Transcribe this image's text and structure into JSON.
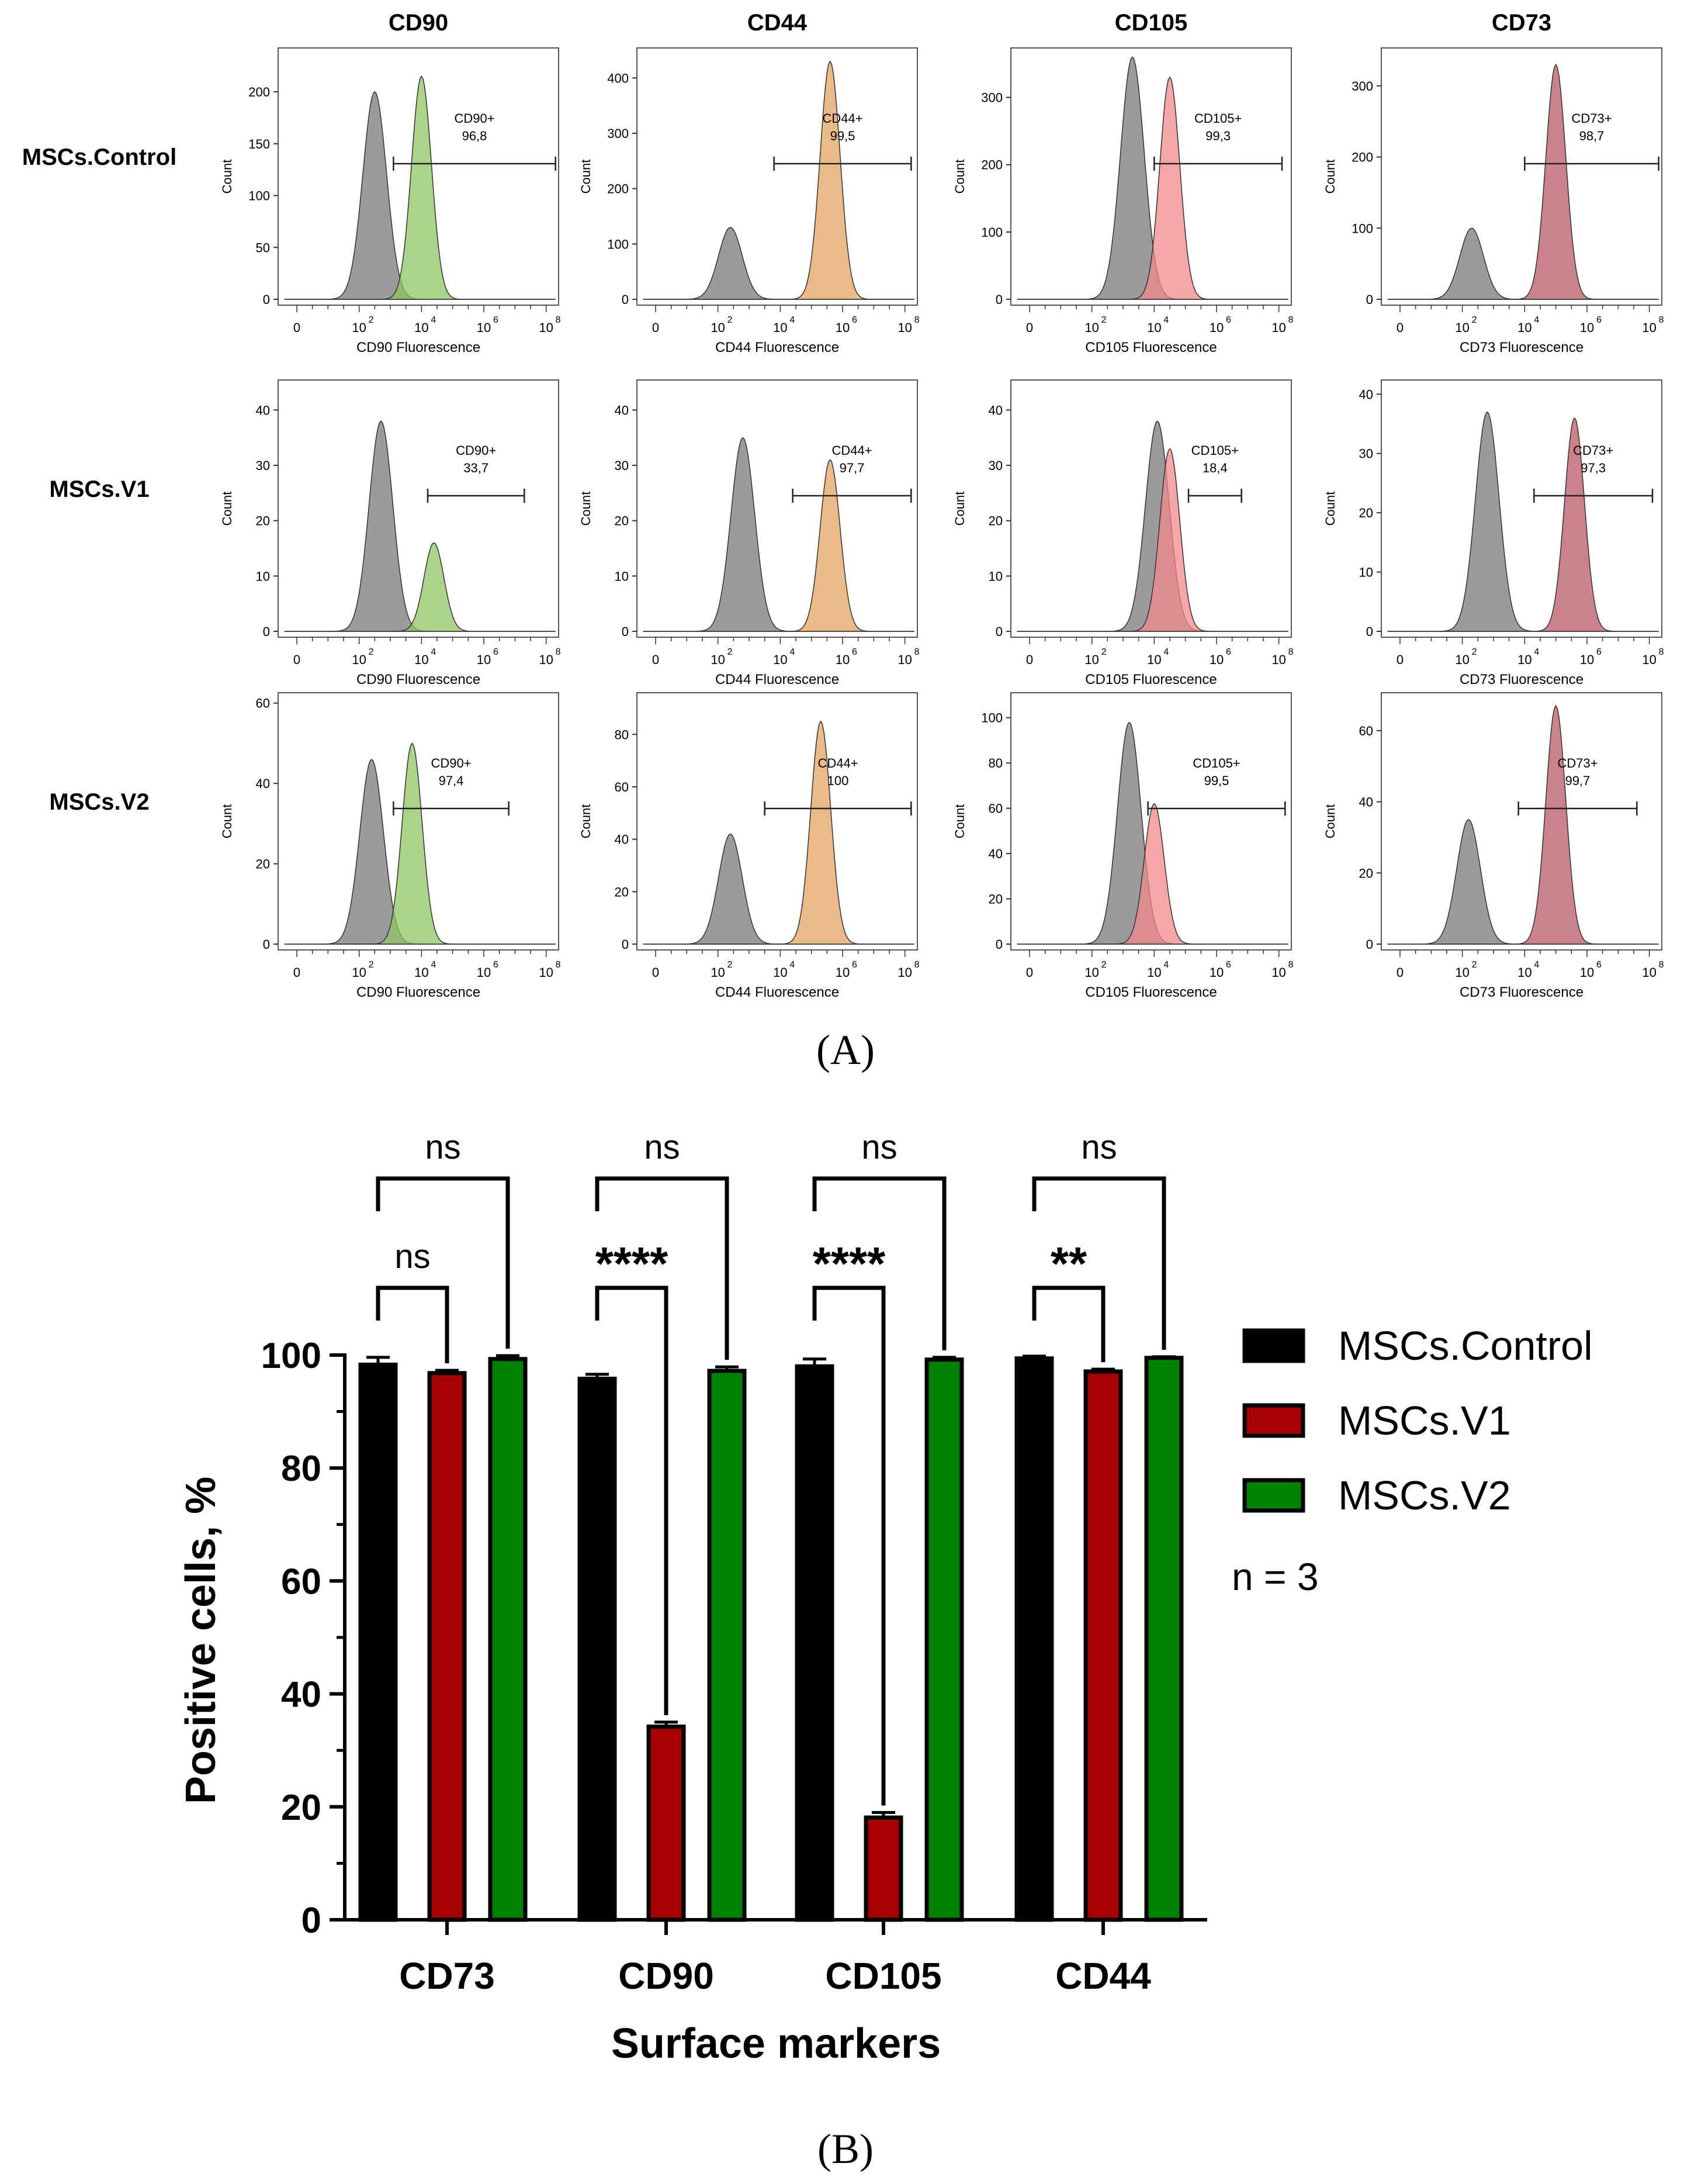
{
  "panel_a": {
    "label": "(A)",
    "columns": [
      "CD90",
      "CD44",
      "CD105",
      "CD73"
    ],
    "rows": [
      "MSCs.Control",
      "MSCs.V1",
      "MSCs.V2"
    ],
    "count_label": "Count",
    "x_tick_labels": [
      "0",
      "10",
      "10",
      "10",
      "10"
    ],
    "x_tick_exponents": [
      "",
      "2",
      "4",
      "6",
      "8"
    ],
    "colors": {
      "control": "#7a7a7a",
      "CD90": "#8fc462",
      "CD44": "#e3a462",
      "CD105": "#f28a8a",
      "CD73": "#b85a64"
    },
    "plots": [
      {
        "row": "MSCs.Control",
        "marker": "CD90",
        "xlabel": "CD90 Fluorescence",
        "gate_label": "CD90+",
        "gate_value": "96,8",
        "ymax": 240,
        "yticks": [
          "0",
          "50",
          "100",
          "150",
          "200"
        ],
        "control_peak": [
          2.5,
          200
        ],
        "marker_peak": [
          4.0,
          215
        ],
        "gate_range": [
          3.1,
          8.3
        ]
      },
      {
        "row": "MSCs.Control",
        "marker": "CD44",
        "xlabel": "CD44 Fluorescence",
        "gate_label": "CD44+",
        "gate_value": "99,5",
        "ymax": 450,
        "yticks": [
          "0",
          "100",
          "200",
          "300",
          "400"
        ],
        "control_peak": [
          2.4,
          130
        ],
        "marker_peak": [
          5.6,
          430
        ],
        "gate_range": [
          3.8,
          8.2
        ]
      },
      {
        "row": "MSCs.Control",
        "marker": "CD105",
        "xlabel": "CD105 Fluorescence",
        "gate_label": "CD105+",
        "gate_value": "99,3",
        "ymax": 370,
        "yticks": [
          "0",
          "100",
          "200",
          "300"
        ],
        "control_peak": [
          3.3,
          360
        ],
        "marker_peak": [
          4.5,
          330
        ],
        "gate_range": [
          4.0,
          8.1
        ]
      },
      {
        "row": "MSCs.Control",
        "marker": "CD73",
        "xlabel": "CD73 Fluorescence",
        "gate_label": "CD73+",
        "gate_value": "98,7",
        "ymax": 350,
        "yticks": [
          "0",
          "100",
          "200",
          "300"
        ],
        "control_peak": [
          2.3,
          100
        ],
        "marker_peak": [
          5.0,
          330
        ],
        "gate_range": [
          4.0,
          8.3
        ]
      },
      {
        "row": "MSCs.V1",
        "marker": "CD90",
        "xlabel": "CD90 Fluorescence",
        "gate_label": "CD90+",
        "gate_value": "33,7",
        "ymax": 45,
        "yticks": [
          "0",
          "10",
          "20",
          "30",
          "40"
        ],
        "control_peak": [
          2.7,
          38
        ],
        "marker_peak": [
          4.4,
          16
        ],
        "gate_range": [
          4.2,
          7.3
        ]
      },
      {
        "row": "MSCs.V1",
        "marker": "CD44",
        "xlabel": "CD44 Fluorescence",
        "gate_label": "CD44+",
        "gate_value": "97,7",
        "ymax": 45,
        "yticks": [
          "0",
          "10",
          "20",
          "30",
          "40"
        ],
        "control_peak": [
          2.8,
          35
        ],
        "marker_peak": [
          5.6,
          31
        ],
        "gate_range": [
          4.4,
          8.2
        ]
      },
      {
        "row": "MSCs.V1",
        "marker": "CD105",
        "xlabel": "CD105 Fluorescence",
        "gate_label": "CD105+",
        "gate_value": "18,4",
        "ymax": 45,
        "yticks": [
          "0",
          "10",
          "20",
          "30",
          "40"
        ],
        "control_peak": [
          4.1,
          38
        ],
        "marker_peak": [
          4.5,
          33
        ],
        "gate_range": [
          5.1,
          6.8
        ]
      },
      {
        "row": "MSCs.V1",
        "marker": "CD73",
        "xlabel": "CD73 Fluorescence",
        "gate_label": "CD73+",
        "gate_value": "97,3",
        "ymax": 42,
        "yticks": [
          "0",
          "10",
          "20",
          "30",
          "40"
        ],
        "control_peak": [
          2.8,
          37
        ],
        "marker_peak": [
          5.6,
          36
        ],
        "gate_range": [
          4.3,
          8.1
        ]
      },
      {
        "row": "MSCs.V2",
        "marker": "CD90",
        "xlabel": "CD90 Fluorescence",
        "gate_label": "CD90+",
        "gate_value": "97,4",
        "ymax": 62,
        "yticks": [
          "0",
          "20",
          "40",
          "60"
        ],
        "control_peak": [
          2.4,
          46
        ],
        "marker_peak": [
          3.7,
          50
        ],
        "gate_range": [
          3.1,
          6.8
        ]
      },
      {
        "row": "MSCs.V2",
        "marker": "CD44",
        "xlabel": "CD44 Fluorescence",
        "gate_label": "CD44+",
        "gate_value": "100",
        "ymax": 95,
        "yticks": [
          "0",
          "20",
          "40",
          "60",
          "80"
        ],
        "control_peak": [
          2.4,
          42
        ],
        "marker_peak": [
          5.3,
          85
        ],
        "gate_range": [
          3.5,
          8.2
        ]
      },
      {
        "row": "MSCs.V2",
        "marker": "CD105",
        "xlabel": "CD105 Fluorescence",
        "gate_label": "CD105+",
        "gate_value": "99,5",
        "ymax": 110,
        "yticks": [
          "0",
          "20",
          "40",
          "60",
          "80",
          "100"
        ],
        "control_peak": [
          3.2,
          98
        ],
        "marker_peak": [
          4.0,
          62
        ],
        "gate_range": [
          3.8,
          8.2
        ]
      },
      {
        "row": "MSCs.V2",
        "marker": "CD73",
        "xlabel": "CD73 Fluorescence",
        "gate_label": "CD73+",
        "gate_value": "99,7",
        "ymax": 70,
        "yticks": [
          "0",
          "20",
          "40",
          "60"
        ],
        "control_peak": [
          2.2,
          35
        ],
        "marker_peak": [
          5.0,
          67
        ],
        "gate_range": [
          3.8,
          7.6
        ]
      }
    ]
  },
  "chart_data": {
    "type": "bar",
    "categories": [
      "CD73",
      "CD90",
      "CD105",
      "CD44"
    ],
    "series": [
      {
        "name": "MSCs.Control",
        "values": [
          98.3,
          95.8,
          98.0,
          99.4
        ],
        "errors": [
          1.3,
          0.8,
          1.3,
          0.4
        ],
        "color": "#000000"
      },
      {
        "name": "MSCs.V1",
        "values": [
          96.8,
          34.2,
          18.1,
          97.1
        ],
        "errors": [
          0.5,
          0.8,
          0.9,
          0.4
        ],
        "color": "#a50000"
      },
      {
        "name": "MSCs.V2",
        "values": [
          99.3,
          97.2,
          99.2,
          99.5
        ],
        "errors": [
          0.6,
          0.7,
          0.4,
          0.2
        ],
        "color": "#008000"
      }
    ],
    "xlabel": "Surface markers",
    "ylabel": "Positive cells, %",
    "ylim": [
      0,
      100
    ],
    "yticks": [
      0,
      20,
      40,
      60,
      80,
      100
    ],
    "legend_position": "right",
    "annotation": "n = 3",
    "significance": [
      {
        "category": "CD73",
        "comparison": "Control vs V1",
        "label": "ns"
      },
      {
        "category": "CD73",
        "comparison": "Control vs V2",
        "label": "ns"
      },
      {
        "category": "CD90",
        "comparison": "Control vs V1",
        "label": "****"
      },
      {
        "category": "CD90",
        "comparison": "Control vs V2",
        "label": "ns"
      },
      {
        "category": "CD105",
        "comparison": "Control vs V1",
        "label": "****"
      },
      {
        "category": "CD105",
        "comparison": "Control vs V2",
        "label": "ns"
      },
      {
        "category": "CD44",
        "comparison": "Control vs V1",
        "label": "**"
      },
      {
        "category": "CD44",
        "comparison": "Control vs V2",
        "label": "ns"
      }
    ],
    "panel_label": "(B)"
  }
}
